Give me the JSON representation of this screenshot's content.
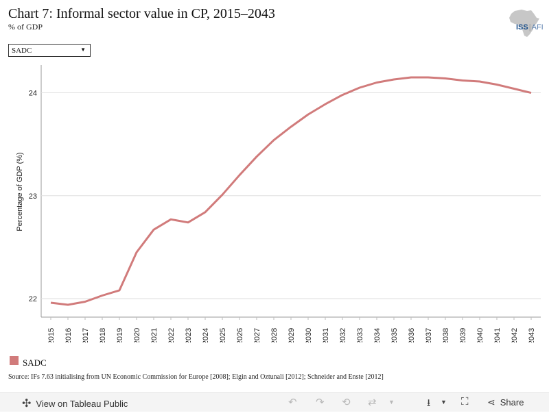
{
  "header": {
    "title": "Chart 7: Informal sector value in CP, 2015–2043",
    "subtitle": "% of GDP"
  },
  "logo": {
    "text_iss": "ISS",
    "text_sep": "|",
    "text_afi": "AFI"
  },
  "filter": {
    "selected": "SADC"
  },
  "chart_data": {
    "type": "line",
    "title": "Chart 7: Informal sector value in CP, 2015–2043",
    "subtitle": "% of GDP",
    "xlabel": "",
    "ylabel": "Percentage of GDP (%)",
    "x": [
      2015,
      2016,
      2017,
      2018,
      2019,
      2020,
      2021,
      2022,
      2023,
      2024,
      2025,
      2026,
      2027,
      2028,
      2029,
      2030,
      2031,
      2032,
      2033,
      2034,
      2035,
      2036,
      2037,
      2038,
      2039,
      2040,
      2041,
      2042,
      2043
    ],
    "xticks": [
      "2015",
      "2016",
      "2017",
      "2018",
      "2019",
      "2020",
      "2021",
      "2022",
      "2023",
      "2024",
      "2025",
      "2026",
      "2027",
      "2028",
      "2029",
      "2030",
      "2031",
      "2032",
      "2033",
      "2034",
      "2035",
      "2036",
      "2037",
      "2038",
      "2039",
      "2040",
      "2041",
      "2042",
      "2043"
    ],
    "yticks": [
      "22",
      "23",
      "24"
    ],
    "ytick_values": [
      22,
      23,
      24
    ],
    "ylim": [
      21.82,
      24.27
    ],
    "grid": true,
    "legend_position": "bottom-left",
    "series": [
      {
        "name": "SADC",
        "color": "#d17b7b",
        "values": [
          21.96,
          21.94,
          21.97,
          22.03,
          22.08,
          22.45,
          22.67,
          22.77,
          22.74,
          22.84,
          23.01,
          23.2,
          23.38,
          23.54,
          23.67,
          23.79,
          23.89,
          23.98,
          24.05,
          24.1,
          24.13,
          24.15,
          24.15,
          24.14,
          24.12,
          24.11,
          24.08,
          24.04,
          24.0
        ]
      }
    ]
  },
  "legend": {
    "label": "SADC",
    "color": "#d17b7b"
  },
  "source": "Source: IFs 7.63 initialising from UN Economic Commission for Europe [2008]; Elgin and Oztunali [2012]; Schneider and Enste [2012]",
  "toolbar": {
    "view_label": "View on Tableau Public",
    "share_label": "Share"
  }
}
